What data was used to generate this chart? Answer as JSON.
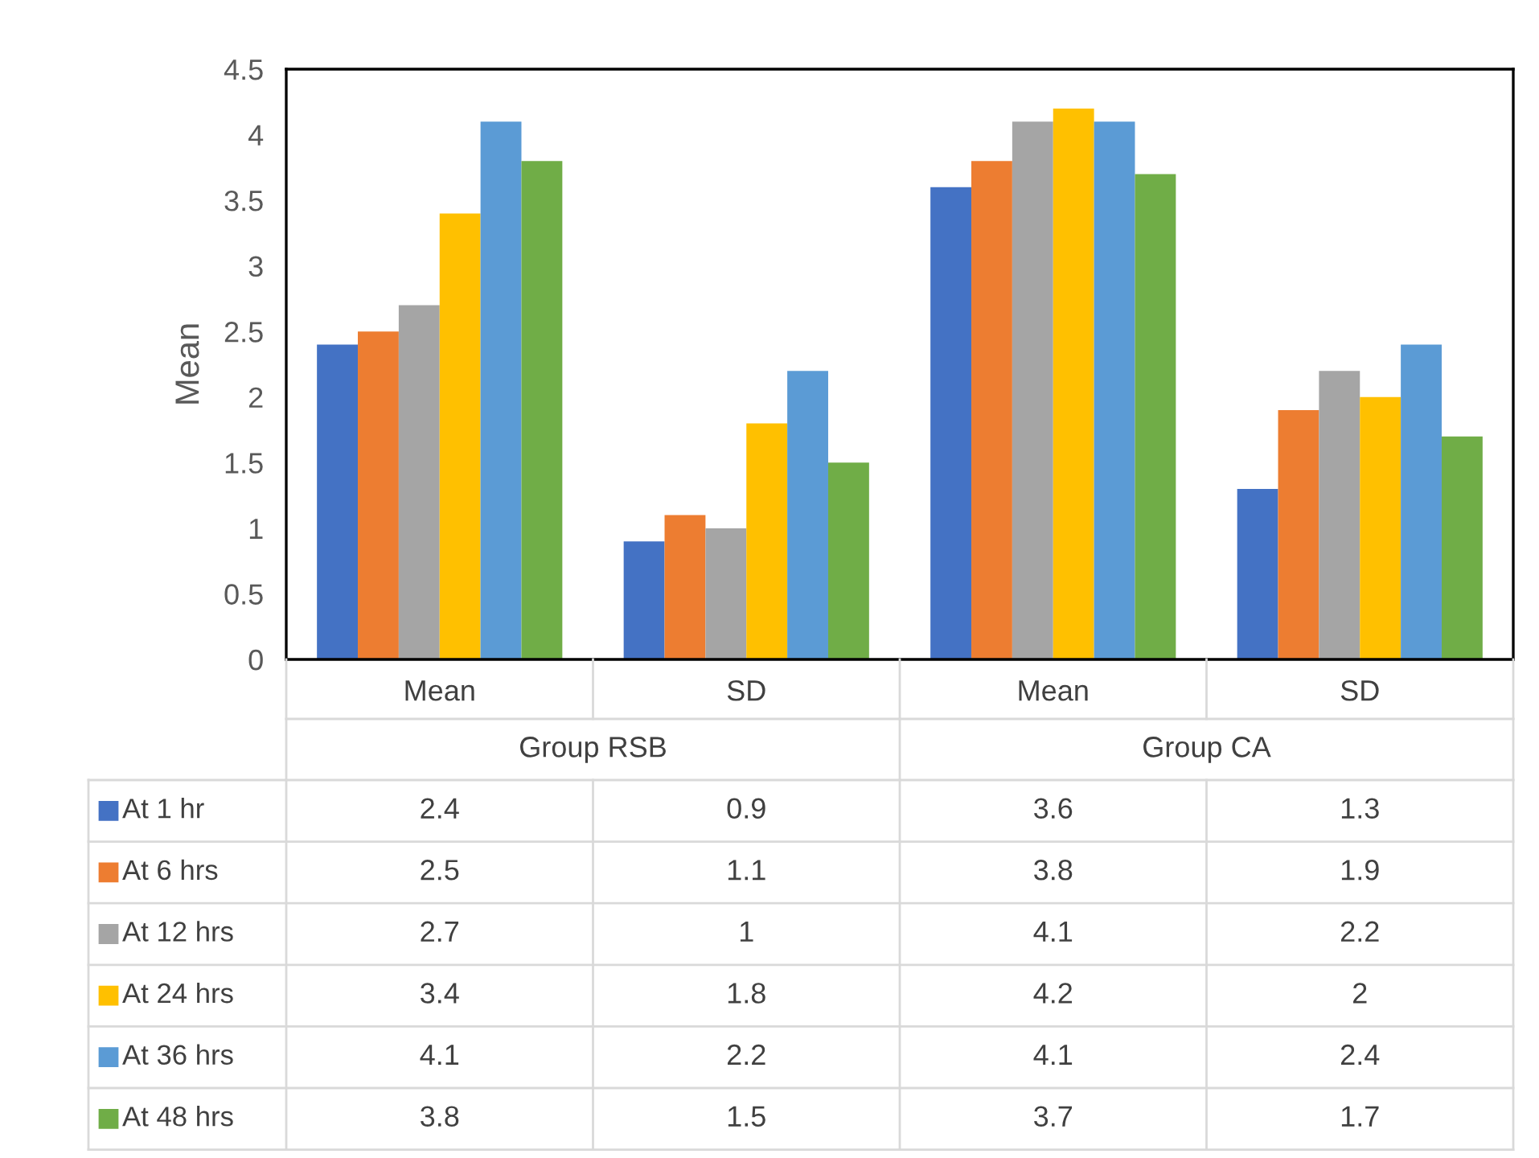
{
  "chart_data": {
    "type": "bar",
    "ylabel": "Mean",
    "categories": [
      "Mean",
      "SD",
      "Mean",
      "SD"
    ],
    "annotations": [
      "Group RSB",
      "Group CA"
    ],
    "series": [
      {
        "name": "At 1 hr",
        "color": "#4472c4",
        "values": [
          2.4,
          0.9,
          3.6,
          1.3
        ]
      },
      {
        "name": "At 6 hrs",
        "color": "#ed7d31",
        "values": [
          2.5,
          1.1,
          3.8,
          1.9
        ]
      },
      {
        "name": "At 12 hrs",
        "color": "#a5a5a5",
        "values": [
          2.7,
          1,
          4.1,
          2.2
        ]
      },
      {
        "name": "At 24 hrs",
        "color": "#ffc000",
        "values": [
          3.4,
          1.8,
          4.2,
          2
        ]
      },
      {
        "name": "At 36 hrs",
        "color": "#5b9bd5",
        "values": [
          4.1,
          2.2,
          4.1,
          2.4
        ]
      },
      {
        "name": "At 48 hrs",
        "color": "#70ad47",
        "values": [
          3.8,
          1.5,
          3.7,
          1.7
        ]
      }
    ],
    "ylim": [
      0,
      4.5
    ],
    "yticks": [
      0,
      0.5,
      1,
      1.5,
      2,
      2.5,
      3,
      3.5,
      4,
      4.5
    ],
    "data_labels": true,
    "grid": false,
    "legend": "bottom left"
  }
}
